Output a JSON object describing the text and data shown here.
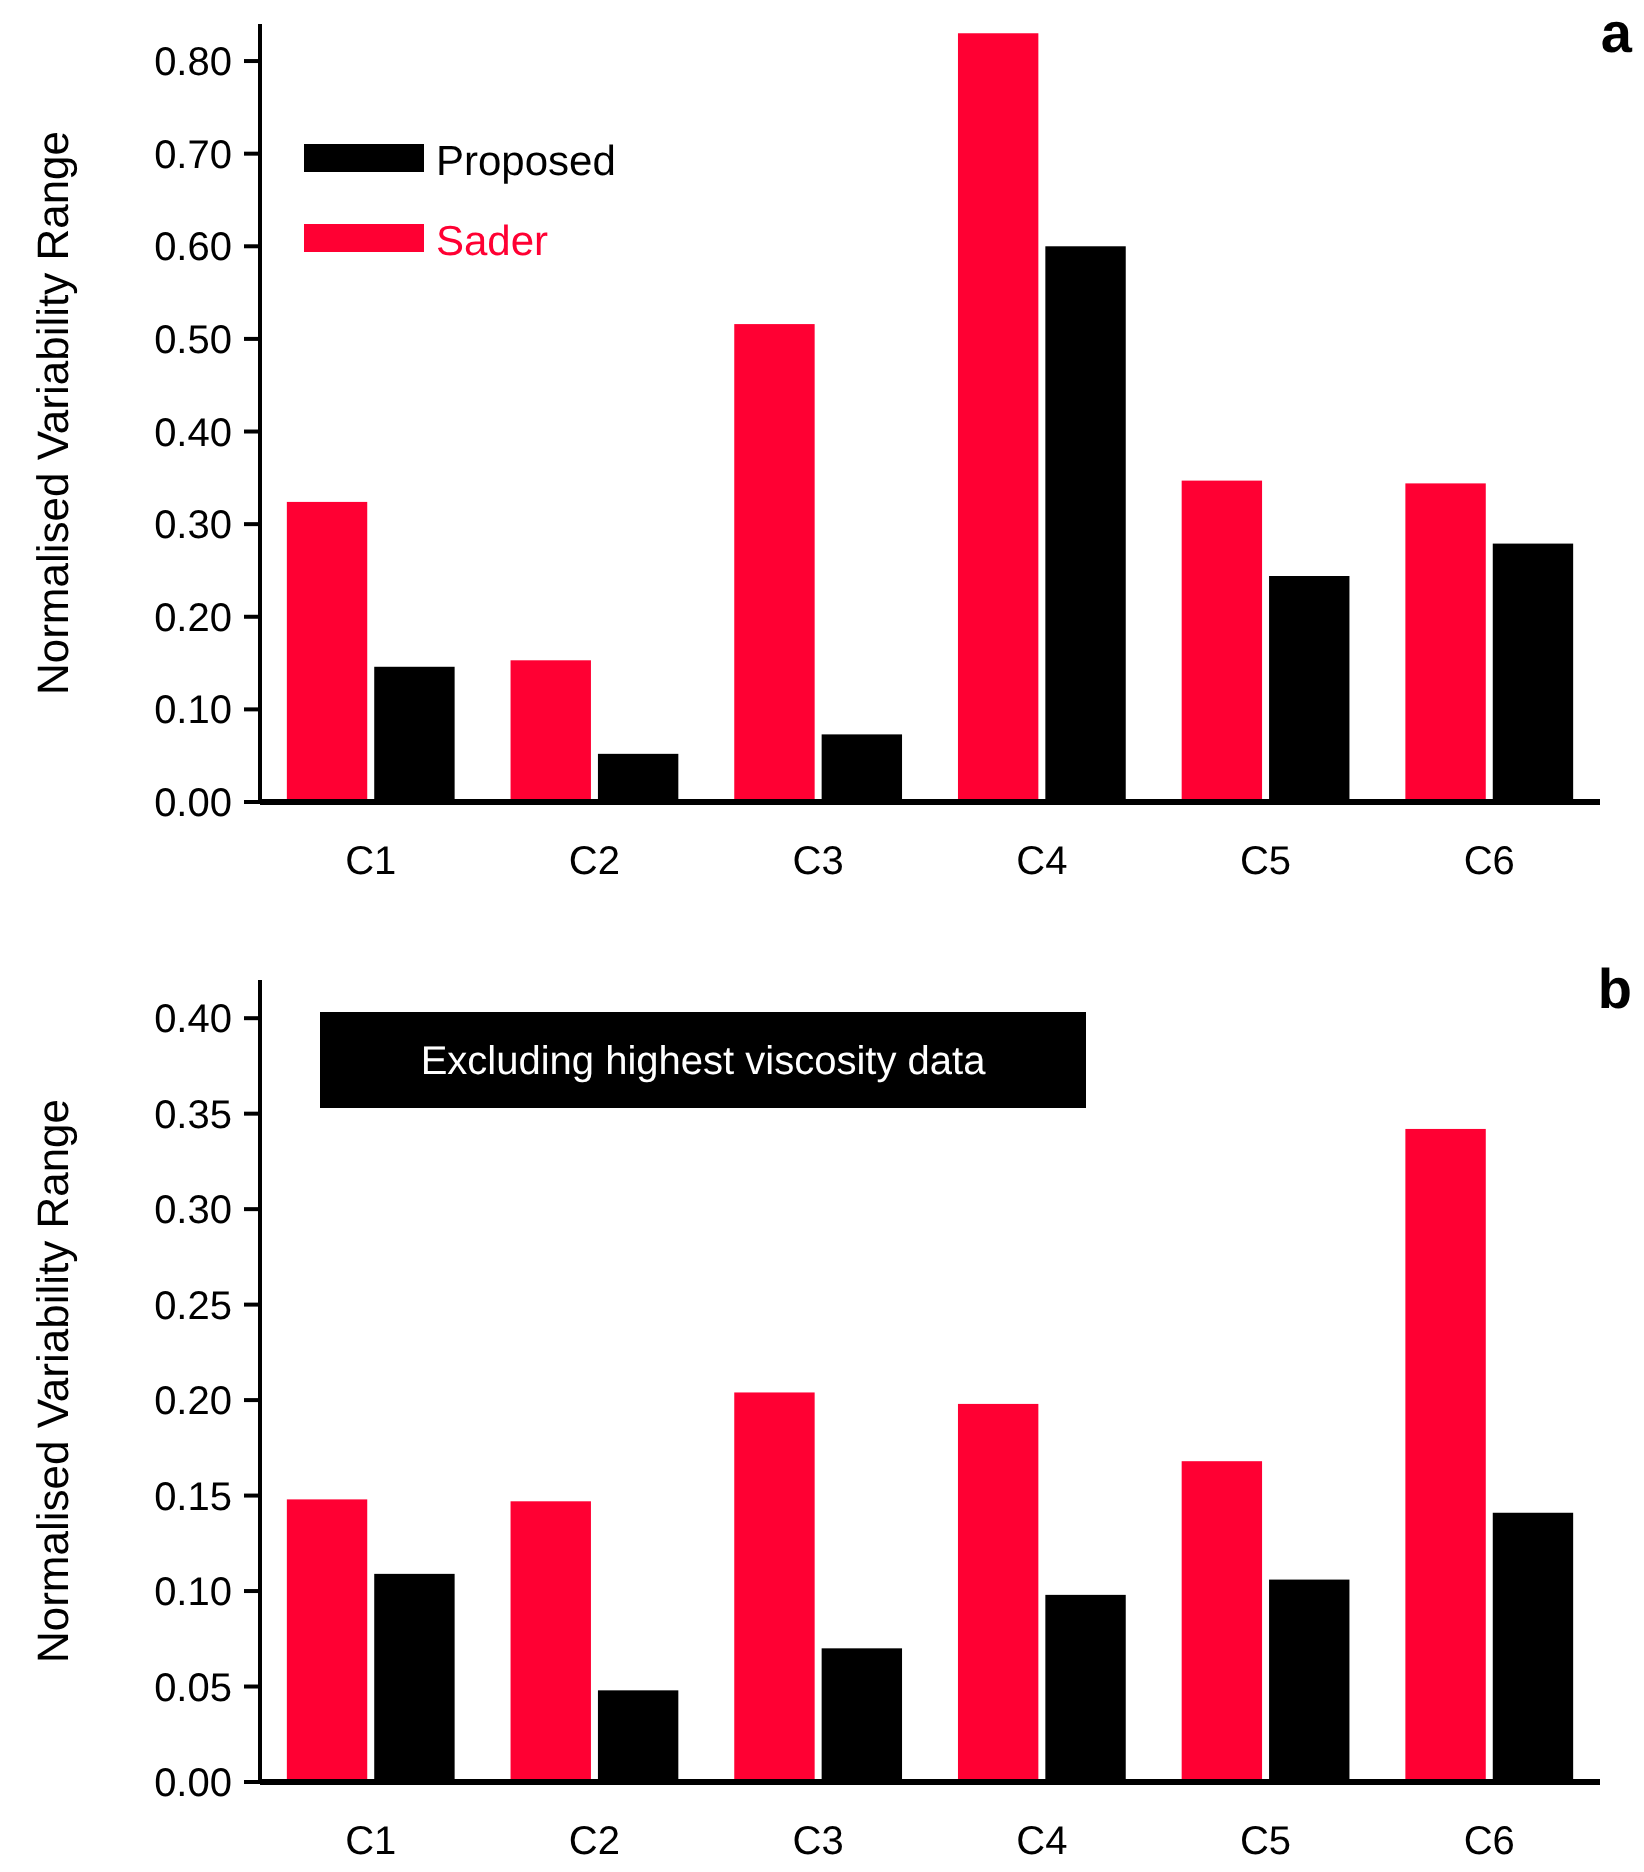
{
  "chart_data": [
    {
      "type": "bar",
      "ylabel": "Normalised Variability Range",
      "categories": [
        "C1",
        "C2",
        "C3",
        "C4",
        "C5",
        "C6"
      ],
      "ylim": [
        0,
        0.84
      ],
      "yticks": [
        {
          "value": 0,
          "label": "0.00"
        },
        {
          "value": 0.1,
          "label": "0.10"
        },
        {
          "value": 0.2,
          "label": "0.20"
        },
        {
          "value": 0.3,
          "label": "0.30"
        },
        {
          "value": 0.4,
          "label": "0.40"
        },
        {
          "value": 0.5,
          "label": "0.50"
        },
        {
          "value": 0.6,
          "label": "0.60"
        },
        {
          "value": 0.7,
          "label": "0.70"
        },
        {
          "value": 0.8,
          "label": "0.80"
        }
      ],
      "legend": "top left",
      "annotations": [
        "a"
      ],
      "series": [
        {
          "name": "Sader",
          "color": "#ff0033",
          "values": [
            0.324,
            0.153,
            0.516,
            0.83,
            0.347,
            0.344
          ]
        },
        {
          "name": "Proposed",
          "color": "#000000",
          "values": [
            0.146,
            0.052,
            0.073,
            0.6,
            0.244,
            0.279
          ]
        }
      ]
    },
    {
      "type": "bar",
      "ylabel": "Normalised Variability Range",
      "categories": [
        "C1",
        "C2",
        "C3",
        "C4",
        "C5",
        "C6"
      ],
      "ylim": [
        0,
        0.42
      ],
      "yticks": [
        {
          "value": 0,
          "label": "0.00"
        },
        {
          "value": 0.05,
          "label": "0.05"
        },
        {
          "value": 0.1,
          "label": "0.10"
        },
        {
          "value": 0.15,
          "label": "0.15"
        },
        {
          "value": 0.2,
          "label": "0.20"
        },
        {
          "value": 0.25,
          "label": "0.25"
        },
        {
          "value": 0.3,
          "label": "0.30"
        },
        {
          "value": 0.35,
          "label": "0.35"
        },
        {
          "value": 0.4,
          "label": "0.40"
        }
      ],
      "annotations": [
        "b",
        "Excluding highest viscosity data"
      ],
      "series": [
        {
          "color": "#ff0033",
          "values": [
            0.148,
            0.147,
            0.204,
            0.198,
            0.168,
            0.342
          ]
        },
        {
          "color": "#000000",
          "values": [
            0.109,
            0.048,
            0.07,
            0.098,
            0.106,
            0.141
          ]
        }
      ]
    }
  ]
}
